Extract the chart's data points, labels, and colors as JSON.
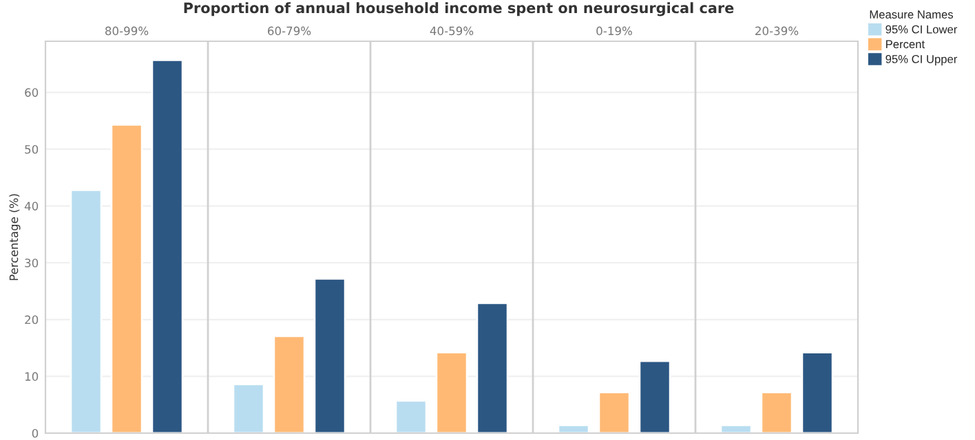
{
  "chart_data": {
    "type": "bar",
    "title": "Proportion of annual household income spent on neurosurgical care",
    "ylabel": "Percentage (%)",
    "legend_title": "Measure Names",
    "categories": [
      "80-99%",
      "60-79%",
      "40-59%",
      "0-19%",
      "20-39%"
    ],
    "series": [
      {
        "name": "95% CI Lower",
        "color": "#b9ddf0",
        "values": [
          42.8,
          8.6,
          5.7,
          1.4,
          1.4
        ]
      },
      {
        "name": "Percent",
        "color": "#ffb974",
        "values": [
          54.3,
          17.1,
          14.2,
          7.2,
          7.2
        ]
      },
      {
        "name": "95% CI Upper",
        "color": "#2c5783",
        "values": [
          65.7,
          27.2,
          22.9,
          12.7,
          14.2
        ]
      }
    ],
    "ylim": [
      0,
      69
    ],
    "yticks": [
      0,
      10,
      20,
      30,
      40,
      50,
      60
    ],
    "grid": "y",
    "legend": "top right"
  }
}
